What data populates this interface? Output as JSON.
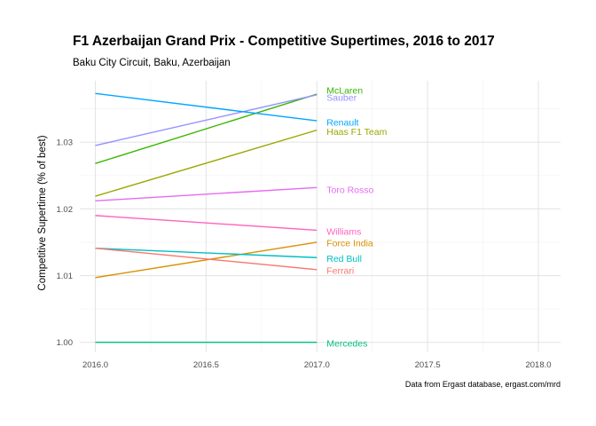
{
  "chart_data": {
    "type": "line",
    "title": "F1 Azerbaijan Grand Prix - Competitive Supertimes, 2016 to 2017",
    "subtitle": "Baku City Circuit, Baku, Azerbaijan",
    "caption": "Data from Ergast database, ergast.com/mrd",
    "xlabel": "",
    "ylabel": "Competitive Supertime (% of best)",
    "xlim": [
      2015.93,
      2018.1
    ],
    "ylim": [
      0.9985,
      1.0392
    ],
    "xticks": [
      2016.0,
      2016.5,
      2017.0,
      2017.5,
      2018.0
    ],
    "xtick_labels": [
      "2016.0",
      "2016.5",
      "2017.0",
      "2017.5",
      "2018.0"
    ],
    "yticks": [
      1.0,
      1.01,
      1.02,
      1.03
    ],
    "ytick_labels": [
      "1.00",
      "1.01",
      "1.02",
      "1.03"
    ],
    "grid": true,
    "legend": "none",
    "x": [
      2016,
      2017
    ],
    "series": [
      {
        "name": "McLaren",
        "values": [
          1.0268,
          1.0372
        ],
        "color": "#39b600"
      },
      {
        "name": "Sauber",
        "values": [
          1.0295,
          1.0371
        ],
        "color": "#9590ff"
      },
      {
        "name": "Renault",
        "values": [
          1.0373,
          1.0332
        ],
        "color": "#00a5ff"
      },
      {
        "name": "Haas F1 Team",
        "values": [
          1.0219,
          1.0318
        ],
        "color": "#9ca700"
      },
      {
        "name": "Toro Rosso",
        "values": [
          1.0212,
          1.0232
        ],
        "color": "#e76bf3"
      },
      {
        "name": "Williams",
        "values": [
          1.019,
          1.0168
        ],
        "color": "#ff62bc"
      },
      {
        "name": "Force India",
        "values": [
          1.0097,
          1.015
        ],
        "color": "#d89000"
      },
      {
        "name": "Red Bull",
        "values": [
          1.0141,
          1.0127
        ],
        "color": "#00bfc4"
      },
      {
        "name": "Ferrari",
        "values": [
          1.0141,
          1.0109
        ],
        "color": "#f8766d"
      },
      {
        "name": "Mercedes",
        "values": [
          1.0,
          1.0
        ],
        "color": "#00bf7d"
      }
    ],
    "label_values": {
      "McLaren": 1.0378,
      "Sauber": 1.0367,
      "Renault": 1.033,
      "Haas F1 Team": 1.0316,
      "Toro Rosso": 1.0229,
      "Williams": 1.0166,
      "Force India": 1.0149,
      "Red Bull": 1.0126,
      "Ferrari": 1.0108,
      "Mercedes": 0.9999
    }
  }
}
